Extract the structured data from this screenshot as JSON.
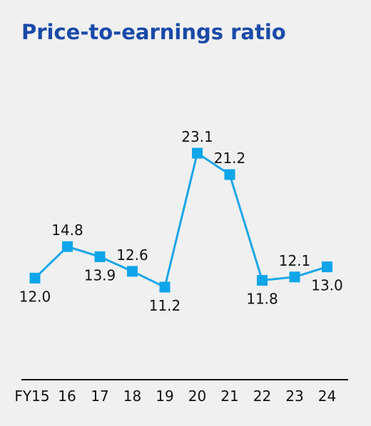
{
  "chart_data": {
    "type": "line",
    "title": "Price-to-earnings ratio",
    "categories": [
      "FY15",
      "16",
      "17",
      "18",
      "19",
      "20",
      "21",
      "22",
      "23",
      "24"
    ],
    "series": [
      {
        "values": [
          12.0,
          14.8,
          13.9,
          12.6,
          11.2,
          23.1,
          21.2,
          11.8,
          12.1,
          13.0
        ]
      }
    ],
    "data_labels": [
      "12.0",
      "14.8",
      "13.9",
      "12.6",
      "11.2",
      "23.1",
      "21.2",
      "11.8",
      "12.1",
      "13.0"
    ],
    "label_placement": [
      "below",
      "above",
      "below",
      "above",
      "below",
      "above",
      "above",
      "below",
      "above",
      "below"
    ],
    "ylim": [
      0,
      30
    ],
    "grid": false,
    "legend": "none",
    "colors": {
      "line": "#1ba6e8",
      "marker": "#0ea5e9",
      "title": "#1a4aa8",
      "axis": "#111111"
    }
  }
}
